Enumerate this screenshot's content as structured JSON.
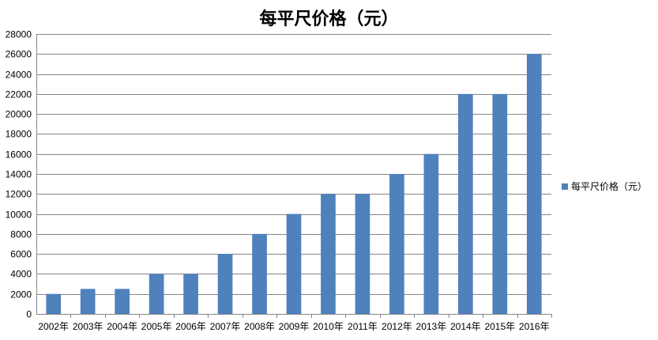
{
  "chart_data": {
    "type": "bar",
    "title": "每平尺价格（元）",
    "xlabel": "",
    "ylabel": "",
    "categories": [
      "2002年",
      "2003年",
      "2004年",
      "2005年",
      "2006年",
      "2007年",
      "2008年",
      "2009年",
      "2010年",
      "2011年",
      "2012年",
      "2013年",
      "2014年",
      "2015年",
      "2016年"
    ],
    "series": [
      {
        "name": "每平尺价格（元）",
        "values": [
          2000,
          2500,
          2500,
          4000,
          4000,
          6000,
          8000,
          10000,
          12000,
          12000,
          14000,
          16000,
          22000,
          22000,
          26000
        ]
      }
    ],
    "ylim": [
      0,
      28000
    ],
    "yticks": [
      0,
      2000,
      4000,
      6000,
      8000,
      10000,
      12000,
      14000,
      16000,
      18000,
      20000,
      22000,
      24000,
      26000,
      28000
    ],
    "grid": true,
    "legend_position": "right",
    "bar_color": "#4F81BD",
    "grid_color": "#868686"
  }
}
